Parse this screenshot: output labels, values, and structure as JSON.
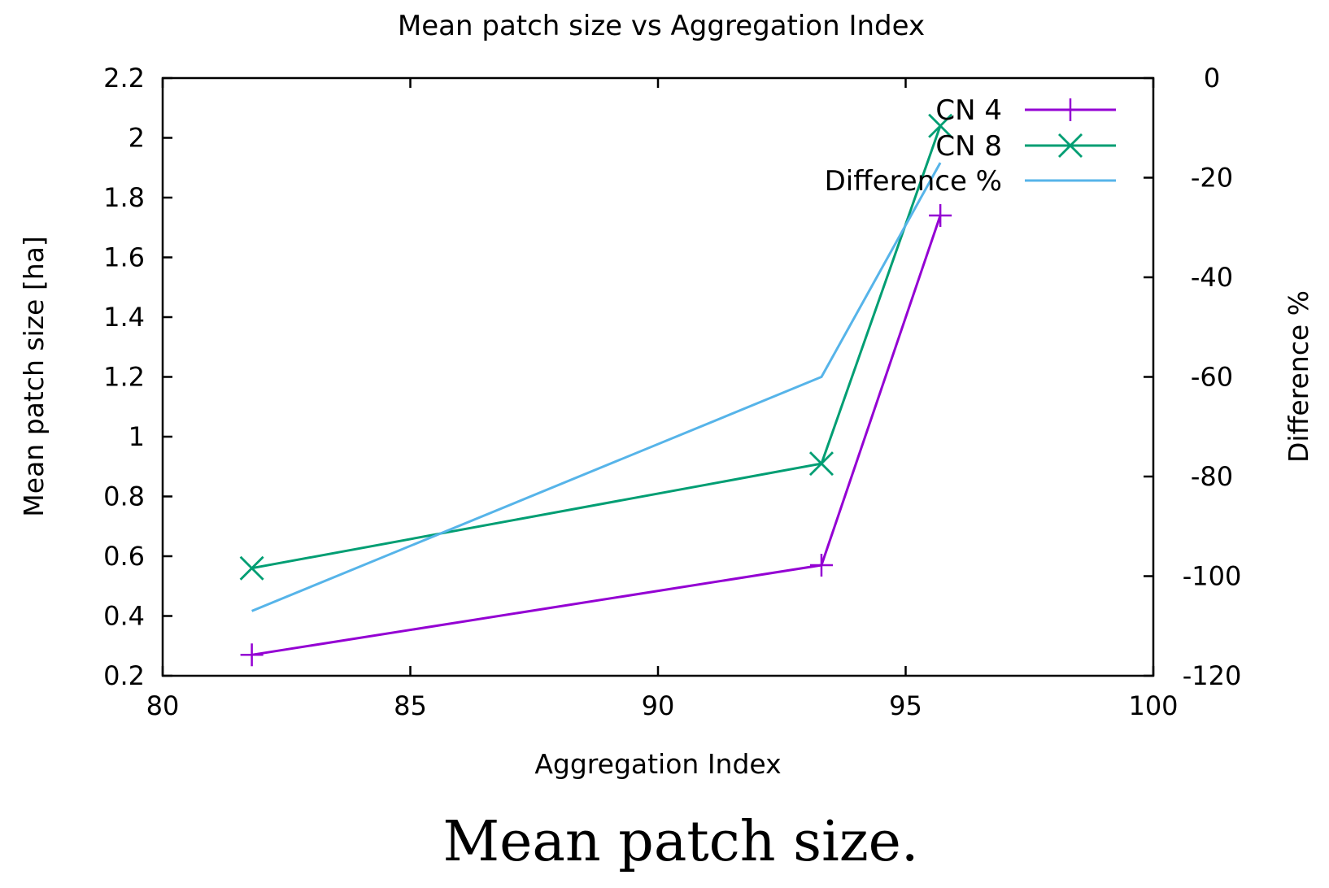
{
  "chart_data": {
    "type": "line",
    "title": "Mean patch size vs Aggregation Index",
    "xlabel": "Aggregation Index",
    "ylabel": "Mean patch size [ha]",
    "y2label": "Difference %",
    "xlim": [
      80,
      100
    ],
    "ylim": [
      0.2,
      2.2
    ],
    "y2lim": [
      -120,
      0
    ],
    "xticks": [
      "80",
      "85",
      "90",
      "95",
      "100"
    ],
    "yticks": [
      "0.2",
      "0.4",
      "0.6",
      "0.8",
      "1",
      "1.2",
      "1.4",
      "1.6",
      "1.8",
      "2",
      "2.2"
    ],
    "y2ticks": [
      "-120",
      "-100",
      "-80",
      "-60",
      "-40",
      "-20",
      "0"
    ],
    "legend_position": "top-right",
    "series": [
      {
        "name": "CN 4",
        "axis": "left",
        "marker": "plus",
        "color": "#9400d3",
        "x": [
          81.8,
          93.3,
          95.7
        ],
        "y": [
          0.27,
          0.57,
          1.74
        ]
      },
      {
        "name": "CN 8",
        "axis": "left",
        "marker": "cross",
        "color": "#009e73",
        "x": [
          81.8,
          93.3,
          95.7
        ],
        "y": [
          0.56,
          0.91,
          2.04
        ]
      },
      {
        "name": "Difference %",
        "axis": "right",
        "marker": "none",
        "color": "#56b4e9",
        "x": [
          81.8,
          93.3,
          95.7
        ],
        "y": [
          -107,
          -60,
          -17
        ]
      }
    ]
  },
  "caption": "Mean patch size."
}
